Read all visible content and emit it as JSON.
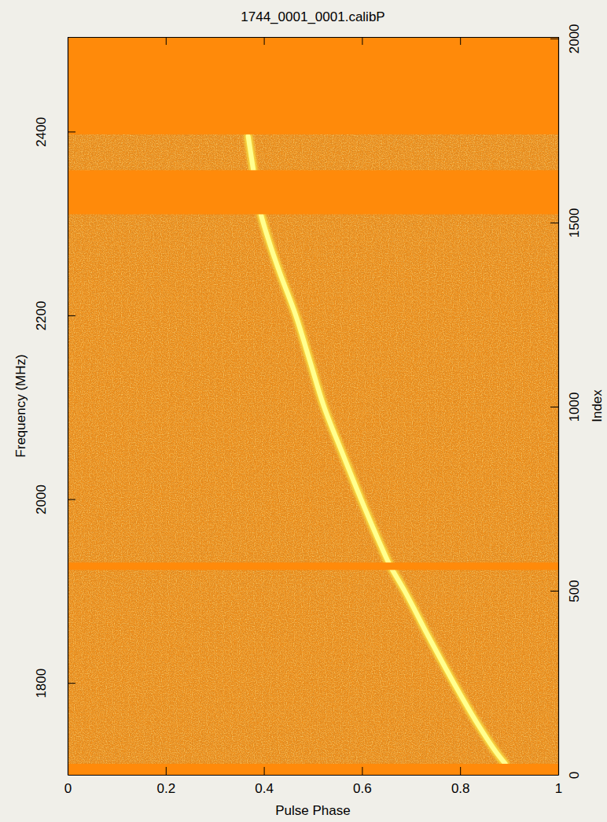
{
  "chart_data": {
    "type": "line",
    "title": "1744_0001_0001.calibP",
    "x_label": "Pulse Phase",
    "y_label": "Frequency (MHz)",
    "y2_label": "Index",
    "x": [
      0.368,
      0.378,
      0.394,
      0.412,
      0.43,
      0.465,
      0.494,
      0.523,
      0.56,
      0.598,
      0.638,
      0.655,
      0.687,
      0.736,
      0.787,
      0.842,
      0.88,
      0.892
    ],
    "values": [
      2395,
      2360,
      2310,
      2278,
      2250,
      2200,
      2150,
      2100,
      2050,
      2000,
      1950,
      1930,
      1900,
      1850,
      1800,
      1750,
      1720,
      1712
    ],
    "color": "#ffff90",
    "masked_bands": [
      [
        2397,
        2503
      ],
      [
        2310,
        2358
      ],
      [
        1923,
        1931
      ],
      [
        1700,
        1712
      ]
    ],
    "masked_color": "#ff8a0a",
    "xlim": [
      0,
      1
    ],
    "xticks": [
      0,
      0.2,
      0.4,
      0.6,
      0.8,
      1
    ],
    "ylim": [
      1700,
      2503
    ],
    "yticks": [
      1800,
      2000,
      2200,
      2400
    ],
    "y2lim": [
      0,
      2004
    ],
    "y2ticks": [
      0,
      500,
      1000,
      1500,
      2000
    ],
    "grid": false
  }
}
